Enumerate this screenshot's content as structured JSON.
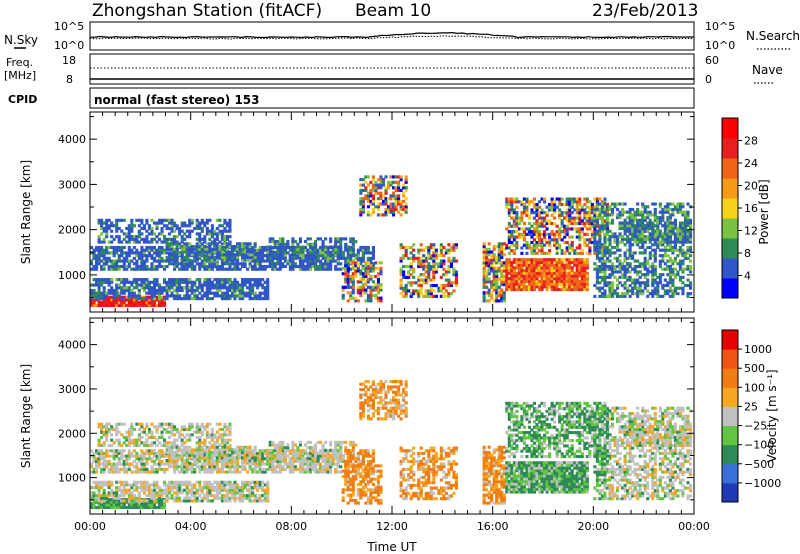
{
  "header": {
    "station": "Zhongshan Station (fitACF)",
    "beam": "Beam 10",
    "date": "23/Feb/2013"
  },
  "strips": {
    "nsky_label": "N.Sky",
    "nsky_ticks": [
      "10^5",
      "10^0"
    ],
    "nsearch_label": "N.Search",
    "nsearch_ticks": [
      "10^5",
      "10^0"
    ],
    "freq_label_line1": "Freq.",
    "freq_label_line2": "[MHz]",
    "freq_ticks": [
      "18",
      "8"
    ],
    "nave_label": "Nave",
    "nave_ticks": [
      "60",
      "0"
    ],
    "cpid_label": "CPID",
    "cpid_text": "normal (fast stereo) 153"
  },
  "chart_data": [
    {
      "type": "heatmap",
      "panel": "power",
      "ylabel": "Slant Range [km]",
      "y_ticks": [
        1000,
        2000,
        3000,
        4000
      ],
      "ylim": [
        180,
        4600
      ],
      "x_ticks": [
        "00:00",
        "04:00",
        "08:00",
        "12:00",
        "16:00",
        "20:00",
        "00:00"
      ],
      "xlim_hours": [
        0,
        24
      ],
      "colorbar": {
        "label": "Power [dB]",
        "ticks": [
          "28",
          "24",
          "20",
          "16",
          "12",
          "8",
          "4"
        ],
        "colors": [
          "#0000ff",
          "#3056c8",
          "#2e8b57",
          "#7cc242",
          "#f5d21c",
          "#f59a16",
          "#f0641a",
          "#e62020",
          "#ff0000"
        ]
      }
    },
    {
      "type": "heatmap",
      "panel": "velocity",
      "ylabel": "Slant Range [km]",
      "y_ticks": [
        1000,
        2000,
        3000,
        4000
      ],
      "ylim": [
        180,
        4600
      ],
      "x_ticks": [
        "00:00",
        "04:00",
        "08:00",
        "12:00",
        "16:00",
        "20:00",
        "00:00"
      ],
      "xlabel": "Time UT",
      "xlim_hours": [
        0,
        24
      ],
      "colorbar": {
        "label": "Velocity [m s⁻¹]",
        "ticks": [
          "1000",
          "500",
          "100",
          "25",
          "−25",
          "−100",
          "−500",
          "−1000"
        ],
        "colors": [
          "#1f3ab4",
          "#3b6fd8",
          "#2e8b57",
          "#62c442",
          "#c0c0c0",
          "#f5a623",
          "#f07d14",
          "#ee5512",
          "#e60000"
        ]
      }
    }
  ]
}
